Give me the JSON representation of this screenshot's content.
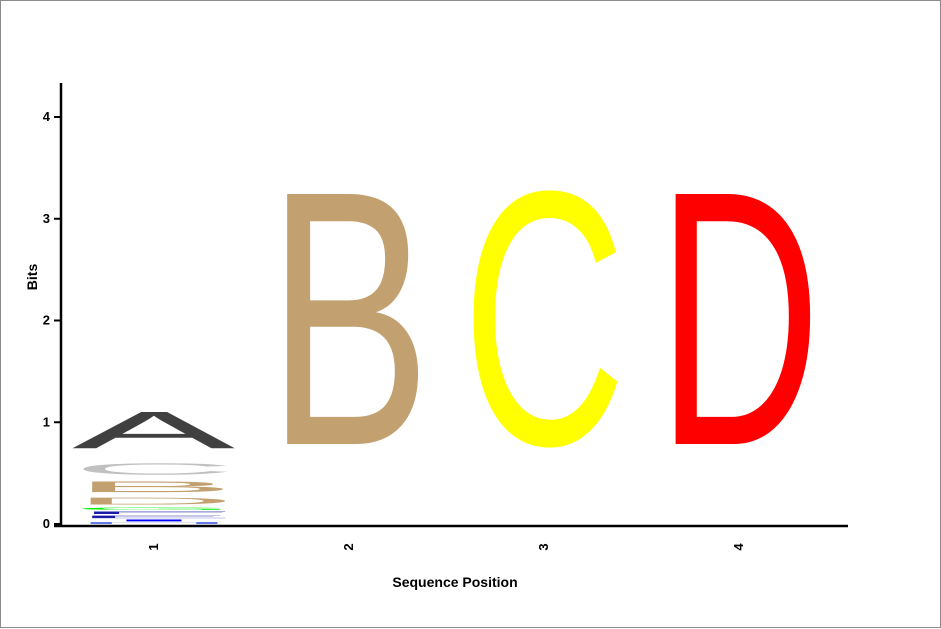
{
  "chart_data": {
    "type": "sequence-logo",
    "xlabel": "Sequence Position",
    "ylabel": "Bits",
    "ylim": [
      0,
      4
    ],
    "y_ticks": [
      "0",
      "1",
      "2",
      "3",
      "4"
    ],
    "positions": [
      {
        "label": "1",
        "letters": [
          {
            "letter": "A",
            "bits": 0.58,
            "color": "#404040"
          },
          {
            "letter": "B",
            "bits": 0.17,
            "color": "#c2a070"
          },
          {
            "letter": "C",
            "bits": 0.18,
            "color": "#c0c0c0"
          },
          {
            "letter": "D",
            "bits": 0.11,
            "color": "#c2a070"
          },
          {
            "letter": "E",
            "bits": 0.04,
            "color": "#1a1aa6"
          },
          {
            "letter": "F",
            "bits": 0.04,
            "color": "#1a1aa6"
          },
          {
            "letter": "G",
            "bits": 0.04,
            "color": "#00ee00"
          },
          {
            "letter": "H",
            "bits": 0.02,
            "color": "#0a2ad8"
          },
          {
            "letter": "I",
            "bits": 0.03,
            "color": "#0000ff"
          }
        ]
      },
      {
        "label": "2",
        "letters": [
          {
            "letter": "B",
            "bits": 4.0,
            "color": "#c2a070"
          }
        ]
      },
      {
        "label": "3",
        "letters": [
          {
            "letter": "C",
            "bits": 4.0,
            "color": "#ffff00"
          }
        ]
      },
      {
        "label": "4",
        "letters": [
          {
            "letter": "D",
            "bits": 4.0,
            "color": "#ff0000"
          }
        ]
      }
    ]
  }
}
